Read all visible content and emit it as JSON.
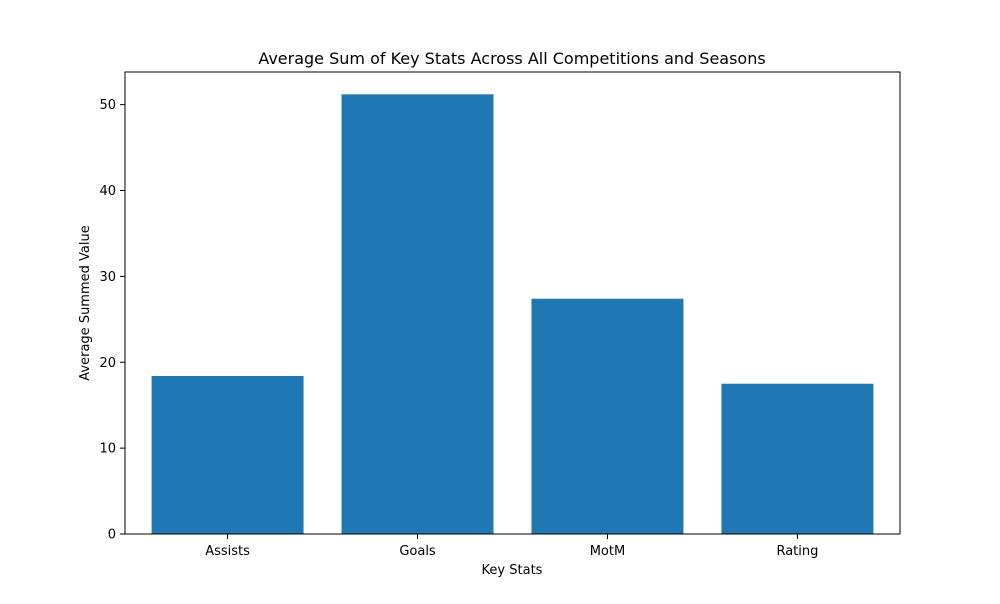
{
  "chart_data": {
    "type": "bar",
    "title": "Average Sum of Key Stats Across All Competitions and Seasons",
    "xlabel": "Key Stats",
    "ylabel": "Average Summed Value",
    "categories": [
      "Assists",
      "Goals",
      "MotM",
      "Rating"
    ],
    "values": [
      18.4,
      51.2,
      27.4,
      17.5
    ],
    "ylim": [
      0,
      53.8
    ],
    "yticks": [
      0,
      10,
      20,
      30,
      40,
      50
    ],
    "grid": false,
    "bar_color": "#1f77b4"
  }
}
